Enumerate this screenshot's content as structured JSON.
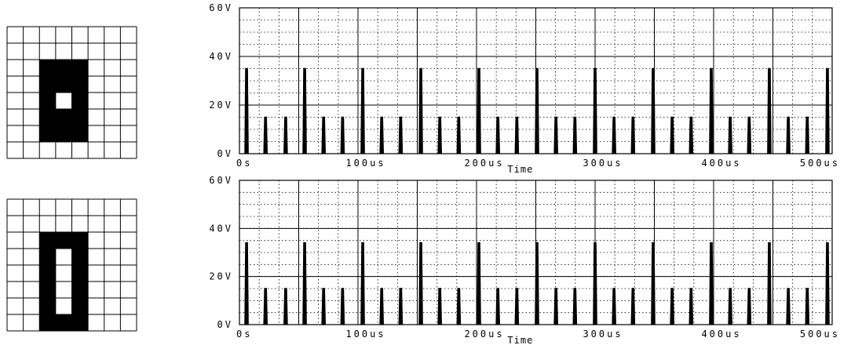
{
  "glyphs": [
    {
      "rows": 8,
      "cols": 8,
      "filled": [
        [
          2,
          2
        ],
        [
          2,
          3
        ],
        [
          2,
          4
        ],
        [
          3,
          2
        ],
        [
          3,
          3
        ],
        [
          3,
          4
        ],
        [
          4,
          2
        ],
        [
          4,
          4
        ],
        [
          5,
          2
        ],
        [
          5,
          3
        ],
        [
          5,
          4
        ],
        [
          6,
          2
        ],
        [
          6,
          3
        ],
        [
          6,
          4
        ]
      ]
    },
    {
      "rows": 8,
      "cols": 8,
      "filled": [
        [
          2,
          2
        ],
        [
          2,
          3
        ],
        [
          2,
          4
        ],
        [
          3,
          2
        ],
        [
          3,
          4
        ],
        [
          4,
          2
        ],
        [
          4,
          4
        ],
        [
          5,
          2
        ],
        [
          5,
          4
        ],
        [
          6,
          2
        ],
        [
          6,
          4
        ],
        [
          7,
          2
        ],
        [
          7,
          3
        ],
        [
          7,
          4
        ]
      ]
    }
  ],
  "chart_data": [
    {
      "type": "line",
      "xlabel": "Time",
      "ylabel": "",
      "x_unit": "us",
      "xlim": [
        0,
        500
      ],
      "ylim": [
        0,
        60
      ],
      "x_ticks": [
        0,
        100,
        200,
        300,
        400,
        500
      ],
      "x_tick_labels": [
        "0s",
        "100us",
        "200us",
        "300us",
        "400us",
        "500us"
      ],
      "y_ticks": [
        0,
        20,
        40,
        60
      ],
      "y_tick_labels": [
        "0V",
        "20V",
        "40V",
        "60V"
      ],
      "grid": true,
      "series": [
        {
          "spikes": [
            {
              "t": 6,
              "v": 35
            },
            {
              "t": 22,
              "v": 15
            },
            {
              "t": 39,
              "v": 15
            },
            {
              "t": 55,
              "v": 35
            },
            {
              "t": 71,
              "v": 15
            },
            {
              "t": 87,
              "v": 15
            },
            {
              "t": 104,
              "v": 35
            },
            {
              "t": 120,
              "v": 15
            },
            {
              "t": 136,
              "v": 15
            },
            {
              "t": 153,
              "v": 35
            },
            {
              "t": 169,
              "v": 15
            },
            {
              "t": 185,
              "v": 15
            },
            {
              "t": 202,
              "v": 35
            },
            {
              "t": 218,
              "v": 15
            },
            {
              "t": 234,
              "v": 15
            },
            {
              "t": 251,
              "v": 35
            },
            {
              "t": 267,
              "v": 15
            },
            {
              "t": 283,
              "v": 15
            },
            {
              "t": 300,
              "v": 35
            },
            {
              "t": 316,
              "v": 15
            },
            {
              "t": 332,
              "v": 15
            },
            {
              "t": 349,
              "v": 35
            },
            {
              "t": 365,
              "v": 15
            },
            {
              "t": 381,
              "v": 15
            },
            {
              "t": 398,
              "v": 35
            },
            {
              "t": 414,
              "v": 15
            },
            {
              "t": 430,
              "v": 15
            },
            {
              "t": 447,
              "v": 35
            },
            {
              "t": 463,
              "v": 15
            },
            {
              "t": 479,
              "v": 15
            },
            {
              "t": 496,
              "v": 35
            }
          ]
        }
      ]
    },
    {
      "type": "line",
      "xlabel": "Time",
      "ylabel": "",
      "x_unit": "us",
      "xlim": [
        0,
        500
      ],
      "ylim": [
        0,
        60
      ],
      "x_ticks": [
        0,
        100,
        200,
        300,
        400,
        500
      ],
      "x_tick_labels": [
        "0s",
        "100us",
        "200us",
        "300us",
        "400us",
        "500us"
      ],
      "y_ticks": [
        0,
        20,
        40,
        60
      ],
      "y_tick_labels": [
        "0V",
        "20V",
        "40V",
        "60V"
      ],
      "grid": true,
      "series": [
        {
          "spikes": [
            {
              "t": 6,
              "v": 34
            },
            {
              "t": 22,
              "v": 15
            },
            {
              "t": 39,
              "v": 15
            },
            {
              "t": 55,
              "v": 34
            },
            {
              "t": 71,
              "v": 15
            },
            {
              "t": 87,
              "v": 15
            },
            {
              "t": 104,
              "v": 34
            },
            {
              "t": 120,
              "v": 15
            },
            {
              "t": 136,
              "v": 15
            },
            {
              "t": 153,
              "v": 34
            },
            {
              "t": 169,
              "v": 15
            },
            {
              "t": 185,
              "v": 15
            },
            {
              "t": 202,
              "v": 34
            },
            {
              "t": 218,
              "v": 15
            },
            {
              "t": 234,
              "v": 15
            },
            {
              "t": 251,
              "v": 34
            },
            {
              "t": 267,
              "v": 15
            },
            {
              "t": 283,
              "v": 15
            },
            {
              "t": 300,
              "v": 34
            },
            {
              "t": 316,
              "v": 15
            },
            {
              "t": 332,
              "v": 15
            },
            {
              "t": 349,
              "v": 34
            },
            {
              "t": 365,
              "v": 15
            },
            {
              "t": 381,
              "v": 15
            },
            {
              "t": 398,
              "v": 34
            },
            {
              "t": 414,
              "v": 15
            },
            {
              "t": 430,
              "v": 15
            },
            {
              "t": 447,
              "v": 34
            },
            {
              "t": 463,
              "v": 15
            },
            {
              "t": 479,
              "v": 15
            },
            {
              "t": 496,
              "v": 34
            }
          ]
        }
      ]
    }
  ]
}
